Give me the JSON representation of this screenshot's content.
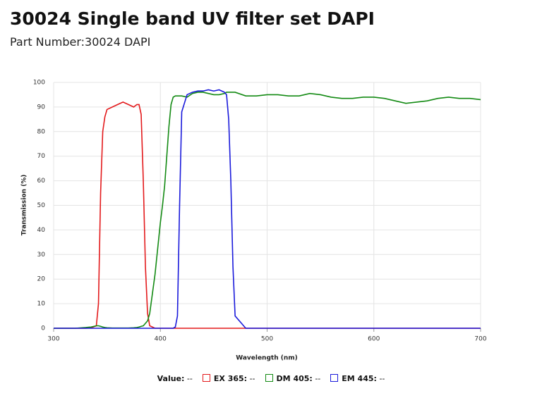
{
  "chart_data": {
    "type": "line",
    "title": "30024 Single band UV filter set DAPI",
    "subtitle": "Part Number:30024 DAPI",
    "x_label": "Wavelength (nm)",
    "y_label": "Transmission (%)",
    "xlim": [
      300,
      700
    ],
    "xticks": [
      300,
      400,
      500,
      600,
      700
    ],
    "ylim": [
      0,
      100
    ],
    "yticks": [
      0,
      10,
      20,
      30,
      40,
      50,
      60,
      70,
      80,
      90,
      100
    ],
    "grid": true,
    "legend_value_label": "Value",
    "legend_readout": "--",
    "x": [
      300,
      310,
      320,
      330,
      335,
      340,
      342,
      344,
      346,
      348,
      350,
      355,
      360,
      365,
      370,
      375,
      378,
      380,
      382,
      384,
      386,
      388,
      390,
      395,
      400,
      402,
      404,
      406,
      408,
      410,
      412,
      414,
      416,
      418,
      420,
      425,
      430,
      435,
      440,
      445,
      450,
      455,
      460,
      462,
      464,
      466,
      468,
      470,
      480,
      490,
      500,
      510,
      520,
      530,
      540,
      550,
      560,
      570,
      580,
      590,
      600,
      610,
      620,
      630,
      640,
      650,
      660,
      670,
      680,
      690,
      700
    ],
    "series": [
      {
        "name": "EX 365",
        "color": "#e31a1c",
        "values": [
          0,
          0,
          0,
          0,
          0.2,
          1,
          10,
          55,
          80,
          86,
          89,
          90,
          91,
          92,
          91,
          90,
          91,
          91,
          87,
          60,
          25,
          6,
          1,
          0,
          0,
          0,
          0,
          0,
          0,
          0,
          0,
          0,
          0,
          0,
          0,
          0,
          0,
          0,
          0,
          0,
          0,
          0,
          0,
          0,
          0,
          0,
          0,
          0,
          0,
          0,
          0,
          0,
          0,
          0,
          0,
          0,
          0,
          0,
          0,
          0,
          0,
          0,
          0,
          0,
          0,
          0,
          0,
          0,
          0,
          0,
          0
        ]
      },
      {
        "name": "DM 405",
        "color": "#138a13",
        "values": [
          0,
          0,
          0,
          0.3,
          0.5,
          1,
          1,
          0.8,
          0.5,
          0.3,
          0.2,
          0.1,
          0.1,
          0.1,
          0.1,
          0.2,
          0.3,
          0.5,
          0.8,
          1,
          2,
          3,
          6,
          22,
          43,
          50,
          58,
          70,
          82,
          91,
          94,
          94.5,
          94.5,
          94.5,
          94.5,
          94,
          95.5,
          96,
          96,
          95.5,
          95,
          95,
          95.5,
          96,
          96,
          96,
          96,
          96,
          94.5,
          94.5,
          95,
          95,
          94.5,
          94.5,
          95.5,
          95,
          94,
          93.5,
          93.5,
          94,
          94,
          93.5,
          92.5,
          91.5,
          92,
          92.5,
          93.5,
          94,
          93.5,
          93.5,
          93
        ]
      },
      {
        "name": "EM 445",
        "color": "#1a1adb",
        "values": [
          0,
          0,
          0,
          0,
          0,
          0,
          0,
          0,
          0,
          0,
          0,
          0,
          0,
          0,
          0,
          0,
          0,
          0,
          0,
          0,
          0,
          0,
          0,
          0,
          0,
          0,
          0,
          0,
          0,
          0,
          0,
          0.5,
          5,
          50,
          88,
          95,
          96,
          96.5,
          96.5,
          97,
          96.5,
          97,
          96,
          95,
          85,
          60,
          25,
          5,
          0,
          0,
          0,
          0,
          0,
          0,
          0,
          0,
          0,
          0,
          0,
          0,
          0,
          0,
          0,
          0,
          0,
          0,
          0,
          0,
          0,
          0,
          0
        ]
      }
    ]
  }
}
